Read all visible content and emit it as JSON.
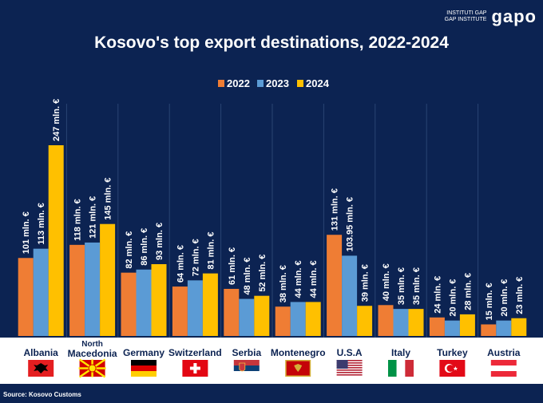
{
  "brand": {
    "line1": "INSTITUTI GAP",
    "line2": "GAP INSTITUTE",
    "logo": "gapo"
  },
  "source": "Source: Kosovo Customs",
  "colors": {
    "2022": "#ef7d34",
    "2023": "#5b9bd5",
    "2024": "#ffc000",
    "background": "#0c2352",
    "axis_label_bg": "#ffffff"
  },
  "chart_data": {
    "type": "bar",
    "title": "Kosovo's top export destinations, 2022-2024",
    "xlabel": "",
    "ylabel": "",
    "legend_position": "top-center",
    "grid": false,
    "categories": [
      {
        "line1": "Albania",
        "line2": ""
      },
      {
        "line1": "North",
        "line2": "Macedonia"
      },
      {
        "line1": "Germany",
        "line2": ""
      },
      {
        "line1": "Switzerland",
        "line2": ""
      },
      {
        "line1": "Serbia",
        "line2": ""
      },
      {
        "line1": "Montenegro",
        "line2": ""
      },
      {
        "line1": "U.S.A",
        "line2": ""
      },
      {
        "line1": "Italy",
        "line2": ""
      },
      {
        "line1": "Turkey",
        "line2": ""
      },
      {
        "line1": "Austria",
        "line2": ""
      }
    ],
    "flags": [
      "albania-flag",
      "north-macedonia-flag",
      "germany-flag",
      "switzerland-flag",
      "serbia-flag",
      "montenegro-flag",
      "usa-flag",
      "italy-flag",
      "turkey-flag",
      "austria-flag"
    ],
    "series": [
      {
        "name": "2022",
        "values": [
          101,
          118,
          82,
          64,
          61,
          38,
          131,
          40,
          24,
          15
        ],
        "labels": [
          "101 mln. €",
          "118 mln. €",
          "82 mln. €",
          "64 mln. €",
          "61 mln. €",
          "38 mln. €",
          "131 mln. €",
          "40 mln. €",
          "24 mln. €",
          "15 mln. €"
        ]
      },
      {
        "name": "2023",
        "values": [
          113,
          121,
          86,
          72,
          48,
          44,
          103.95,
          35,
          20,
          20
        ],
        "labels": [
          "113 mln. €",
          "121 mln. €",
          "86 mln. €",
          "72 mln. €",
          "48 mln. €",
          "44 mln. €",
          "103.95 mln. €",
          "35 mln. €",
          "20 mln. €",
          "20 mln. €"
        ]
      },
      {
        "name": "2024",
        "values": [
          247,
          145,
          93,
          81,
          52,
          44,
          39,
          35,
          28,
          23
        ],
        "labels": [
          "247 mln. €",
          "145 mln. €",
          "93 mln. €",
          "81 mln. €",
          "52 mln. €",
          "44 mln. €",
          "39 mln. €",
          "35 mln. €",
          "28 mln. €",
          "23 mln. €"
        ]
      }
    ],
    "ylim": [
      0,
      247
    ]
  }
}
